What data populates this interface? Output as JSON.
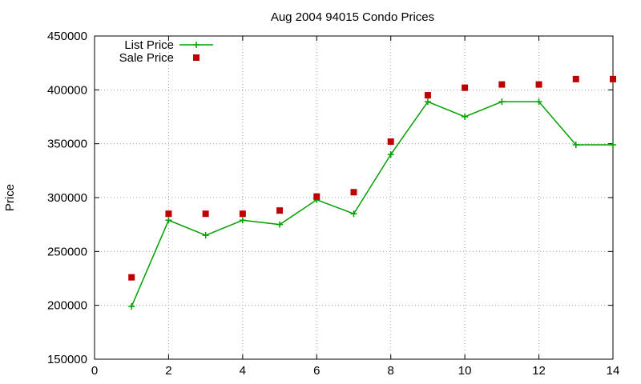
{
  "chart_data": {
    "type": "line",
    "title": "Aug 2004 94015 Condo Prices",
    "xlabel": "",
    "ylabel": "Price",
    "xlim": [
      0,
      14
    ],
    "ylim": [
      150000,
      450000
    ],
    "xticks": [
      0,
      2,
      4,
      6,
      8,
      10,
      12,
      14
    ],
    "yticks": [
      150000,
      200000,
      250000,
      300000,
      350000,
      400000,
      450000
    ],
    "xtick_labels": [
      "0",
      "2",
      "4",
      "6",
      "8",
      "10",
      "12",
      "14"
    ],
    "ytick_labels": [
      "150000",
      "200000",
      "250000",
      "300000",
      "350000",
      "400000",
      "450000"
    ],
    "grid": true,
    "legend_position": "top-left",
    "series": [
      {
        "name": "List Price",
        "style": "line+cross",
        "color": "#00a000",
        "x": [
          1,
          2,
          3,
          4,
          5,
          6,
          7,
          8,
          9,
          10,
          11,
          12,
          13,
          14
        ],
        "y": [
          199000,
          279000,
          265000,
          279000,
          275000,
          298000,
          285000,
          340000,
          389000,
          375000,
          389000,
          389000,
          349000,
          349000
        ]
      },
      {
        "name": "Sale Price",
        "style": "square-points",
        "color": "#c00000",
        "x": [
          1,
          2,
          3,
          4,
          5,
          6,
          7,
          8,
          9,
          10,
          11,
          12,
          13,
          14
        ],
        "y": [
          226000,
          285000,
          285000,
          285000,
          288000,
          301000,
          305000,
          352000,
          395000,
          402000,
          405000,
          405000,
          410000,
          410000
        ]
      }
    ]
  }
}
